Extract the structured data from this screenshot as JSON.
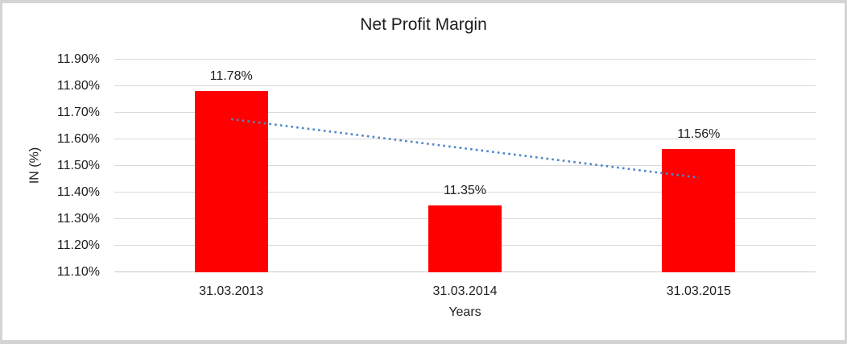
{
  "chart_data": {
    "type": "bar",
    "title": "Net Profit Margin",
    "xlabel": "Years",
    "ylabel": "IN (%)",
    "categories": [
      "31.03.2013",
      "31.03.2014",
      "31.03.2015"
    ],
    "values": [
      11.78,
      11.35,
      11.56
    ],
    "data_labels": [
      "11.78%",
      "11.35%",
      "11.56%"
    ],
    "ylim": [
      11.1,
      11.9
    ],
    "y_tick_labels": [
      "11.90%",
      "11.80%",
      "11.70%",
      "11.60%",
      "11.50%",
      "11.40%",
      "11.30%",
      "11.20%",
      "11.10%"
    ],
    "y_tick_values": [
      11.9,
      11.8,
      11.7,
      11.6,
      11.5,
      11.4,
      11.3,
      11.2,
      11.1
    ],
    "grid": true,
    "legend": "none",
    "trendline": {
      "type": "linear",
      "style": "dotted",
      "start_value": 11.673,
      "end_value": 11.453
    },
    "colors": {
      "bar": "#FF0000",
      "gridline": "#D9D9D9",
      "axis_line": "#C9C9C9",
      "trendline": "#4F86C6",
      "text": "#1D1D1D",
      "frame_border": "#D4D4D4",
      "background": "#FFFFFF"
    }
  }
}
